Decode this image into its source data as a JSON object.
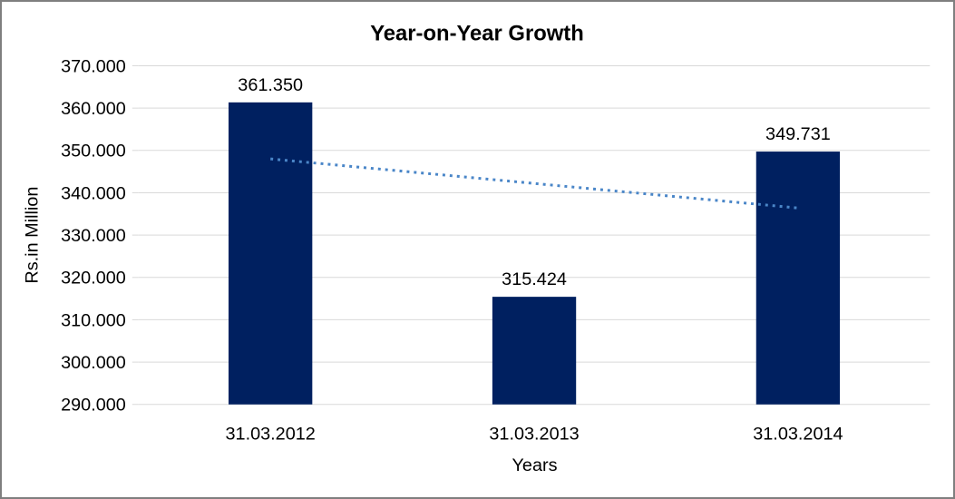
{
  "title": "Year-on-Year Growth",
  "chart_data": {
    "type": "bar",
    "title": "Year-on-Year Growth",
    "title_color": "#ff0000",
    "xlabel": "Years",
    "ylabel": "Rs.in Million",
    "categories": [
      "31.03.2012",
      "31.03.2013",
      "31.03.2014"
    ],
    "values": [
      361.35,
      315.424,
      349.731
    ],
    "value_labels": [
      "361.350",
      "315.424",
      "349.731"
    ],
    "ylim": [
      290,
      370
    ],
    "ytick_step": 10,
    "ytick_labels": [
      "290.000",
      "300.000",
      "310.000",
      "320.000",
      "330.000",
      "340.000",
      "350.000",
      "360.000",
      "370.000"
    ],
    "grid": true,
    "gridline_color": "#d9d9d9",
    "bar_color": "#002060",
    "legend": "none",
    "trendline": {
      "style": "dotted",
      "color": "#4a86c8",
      "start_value": 348.0,
      "end_value": 336.4
    }
  }
}
